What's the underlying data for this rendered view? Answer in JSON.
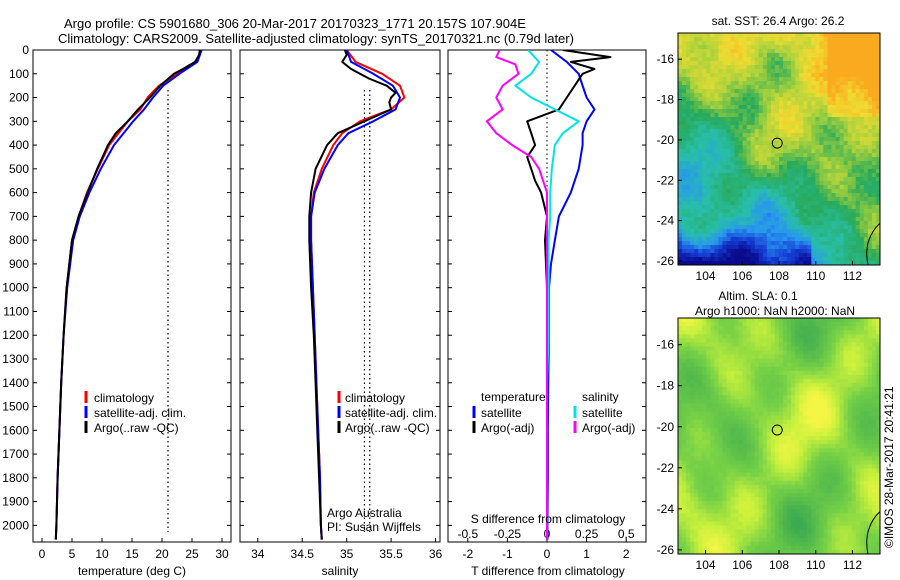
{
  "header": {
    "line1": "Argo profile: CS 5901680_306 20-Mar-2017 20170323_1771 20.157S 107.904E",
    "line2": "Climatology: CARS2009. Satellite-adjusted climatology: synTS_20170321.nc (0.79d later)"
  },
  "watermark": "©IMOS 28-Mar-2017 20:41:21",
  "colors": {
    "climatology": "#ff0000",
    "satellite": "#0000ff",
    "argo": "#000000",
    "salinity_satellite": "#00e5e5",
    "salinity_argo": "#ff00ff"
  },
  "chart_data": [
    {
      "type": "line",
      "id": "temperature",
      "xlabel": "temperature (deg C)",
      "ylabel": "",
      "xlim": [
        -1.5,
        31.5
      ],
      "ylim": [
        2070,
        0
      ],
      "xticks": [
        "0",
        "5",
        "10",
        "15",
        "20",
        "25",
        "30"
      ],
      "yticks": [
        "0",
        "100",
        "200",
        "300",
        "400",
        "500",
        "600",
        "700",
        "800",
        "900",
        "1000",
        "1100",
        "1200",
        "1300",
        "1400",
        "1500",
        "1600",
        "1700",
        "1800",
        "1900",
        "2000"
      ],
      "reference_x": 21,
      "legend": [
        "climatology",
        "satellite-adj. clim.",
        "Argo(..raw -QC)"
      ],
      "series": [
        {
          "name": "climatology",
          "y": [
            0,
            50,
            100,
            150,
            200,
            250,
            300,
            400,
            500,
            600,
            700,
            800,
            1000,
            1200,
            1400,
            1600,
            1800,
            2000,
            2060
          ],
          "x": [
            26.5,
            25.7,
            22.5,
            19.5,
            17.6,
            16.4,
            14.3,
            11.2,
            9.3,
            7.5,
            6.1,
            5.0,
            4.1,
            3.6,
            3.2,
            2.9,
            2.6,
            2.4,
            2.3
          ]
        },
        {
          "name": "satellite-adj. clim.",
          "y": [
            0,
            50,
            100,
            150,
            200,
            250,
            300,
            400,
            500,
            600,
            700,
            800,
            1000,
            1200,
            1400,
            1600,
            1800,
            2000,
            2060
          ],
          "x": [
            26.6,
            25.9,
            22.9,
            20.2,
            18.5,
            17.0,
            15.2,
            12.0,
            9.8,
            7.9,
            6.3,
            5.2,
            4.2,
            3.6,
            3.2,
            2.9,
            2.6,
            2.4,
            2.3
          ]
        },
        {
          "name": "Argo(..raw -QC)",
          "y": [
            0,
            20,
            50,
            80,
            100,
            150,
            200,
            250,
            300,
            350,
            400,
            500,
            600,
            700,
            800,
            1000,
            1200,
            1400,
            1600,
            1800,
            2000,
            2060
          ],
          "x": [
            26.3,
            26.2,
            25.5,
            23.5,
            22.0,
            19.7,
            18.0,
            16.0,
            14.3,
            12.3,
            11.0,
            9.2,
            7.6,
            6.1,
            5.0,
            4.1,
            3.6,
            3.2,
            2.9,
            2.6,
            2.4,
            2.3
          ]
        }
      ]
    },
    {
      "type": "line",
      "id": "salinity",
      "xlabel": "salinity",
      "ylabel": "",
      "xlim": [
        33.8,
        36.05
      ],
      "ylim": [
        2070,
        0
      ],
      "xticks": [
        "34",
        "34.5",
        "35",
        "35.5",
        "36"
      ],
      "reference_x": [
        35.2,
        35.26
      ],
      "legend": [
        "climatology",
        "satellite-adj. clim.",
        "Argo(..raw -QC)"
      ],
      "annotations": [
        "Argo Australia",
        "PI: Susan Wijffels"
      ],
      "series": [
        {
          "name": "climatology",
          "y": [
            0,
            50,
            100,
            150,
            200,
            250,
            300,
            350,
            400,
            500,
            600,
            700,
            800,
            1000,
            1200,
            1400,
            1600,
            1800,
            2000,
            2060
          ],
          "x": [
            35.0,
            35.1,
            35.4,
            35.6,
            35.65,
            35.5,
            35.15,
            34.95,
            34.85,
            34.72,
            34.63,
            34.6,
            34.6,
            34.62,
            34.64,
            34.66,
            34.68,
            34.7,
            34.71,
            34.72
          ]
        },
        {
          "name": "satellite-adj. clim.",
          "y": [
            0,
            50,
            100,
            150,
            200,
            250,
            300,
            350,
            400,
            500,
            600,
            700,
            800,
            1000,
            1200,
            1400,
            1600,
            1800,
            2000,
            2060
          ],
          "x": [
            35.0,
            35.05,
            35.3,
            35.52,
            35.6,
            35.55,
            35.3,
            35.02,
            34.9,
            34.75,
            34.64,
            34.6,
            34.6,
            34.62,
            34.64,
            34.66,
            34.68,
            34.7,
            34.71,
            34.72
          ]
        },
        {
          "name": "Argo(..raw -QC)",
          "y": [
            0,
            20,
            50,
            80,
            100,
            120,
            150,
            180,
            200,
            220,
            250,
            300,
            350,
            400,
            500,
            600,
            700,
            800,
            1000,
            1200,
            1400,
            1600,
            1800,
            2000,
            2060
          ],
          "x": [
            34.98,
            35.0,
            34.95,
            35.05,
            35.15,
            35.25,
            35.45,
            35.55,
            35.5,
            35.48,
            35.5,
            35.2,
            34.9,
            34.78,
            34.65,
            34.6,
            34.58,
            34.58,
            34.6,
            34.63,
            34.65,
            34.67,
            34.69,
            34.71,
            34.72
          ]
        }
      ]
    },
    {
      "type": "line",
      "id": "difference",
      "xlabel": "T difference from climatology",
      "xlabel_top": "S difference from climatology",
      "xlim": [
        -2.5,
        2.5
      ],
      "ylim": [
        2070,
        0
      ],
      "xticks": [
        "-2",
        "-1",
        "0",
        "1",
        "2"
      ],
      "xticks_top": [
        "-0.5",
        "-0.25",
        "0",
        "0.25",
        "0.5"
      ],
      "legend_temperature_title": "temperature",
      "legend_salinity_title": "salinity",
      "legend_temperature": [
        "satellite",
        "Argo(-adj)"
      ],
      "legend_salinity": [
        "satellite",
        "Argo(-adj)"
      ],
      "series": [
        {
          "name": "T satellite",
          "y": [
            0,
            50,
            100,
            150,
            200,
            250,
            300,
            350,
            400,
            500,
            600,
            700,
            800,
            900,
            1000,
            1200,
            1400,
            1600,
            1800,
            2000,
            2060
          ],
          "x": [
            0.1,
            0.5,
            0.8,
            0.9,
            1.0,
            1.2,
            1.0,
            0.9,
            0.9,
            0.8,
            0.6,
            0.3,
            0.2,
            0.1,
            0.05,
            0.05,
            0.03,
            0.02,
            0.02,
            0.01,
            0.01
          ]
        },
        {
          "name": "T Argo(-adj)",
          "y": [
            0,
            30,
            50,
            60,
            80,
            100,
            150,
            200,
            250,
            300,
            350,
            400,
            450,
            500,
            550,
            600,
            700,
            800,
            1000,
            1200,
            1400,
            1600,
            1800,
            2000,
            2060
          ],
          "x": [
            0.4,
            1.6,
            0.6,
            0.8,
            1.2,
            0.9,
            0.7,
            0.5,
            0.3,
            -0.5,
            -0.4,
            -0.3,
            -0.5,
            -0.4,
            -0.3,
            -0.15,
            0.0,
            -0.05,
            0.0,
            0.0,
            0.0,
            0.0,
            0.0,
            0.0,
            0.0
          ]
        },
        {
          "name": "S satellite",
          "y": [
            0,
            50,
            100,
            150,
            200,
            250,
            300,
            350,
            400,
            500,
            600,
            700,
            800,
            1000,
            1200,
            1400,
            1600,
            1800,
            2000,
            2060
          ],
          "x": [
            -0.12,
            -0.05,
            -0.1,
            -0.2,
            -0.1,
            0.05,
            0.2,
            0.1,
            0.05,
            0.03,
            0.02,
            0.02,
            0.01,
            0.01,
            0.01,
            0.0,
            0.0,
            0.0,
            0.0,
            0.0
          ]
        },
        {
          "name": "S Argo(-adj)",
          "y": [
            0,
            30,
            60,
            100,
            150,
            200,
            250,
            300,
            350,
            400,
            450,
            500,
            600,
            700,
            800,
            1000,
            1200,
            1400,
            1600,
            1800,
            2000,
            2060
          ],
          "x": [
            -0.3,
            -0.32,
            -0.2,
            -0.18,
            -0.28,
            -0.32,
            -0.28,
            -0.38,
            -0.32,
            -0.22,
            -0.1,
            -0.05,
            0.0,
            0.0,
            0.0,
            0.0,
            0.0,
            0.0,
            0.0,
            0.0,
            0.0,
            0.0
          ]
        }
      ]
    },
    {
      "type": "heatmap",
      "id": "sst_map",
      "title": "sat. SST: 26.4 Argo: 26.2",
      "xticks": [
        "104",
        "106",
        "108",
        "110",
        "112"
      ],
      "yticks": [
        "-16",
        "-18",
        "-20",
        "-22",
        "-24",
        "-26"
      ],
      "xlim": [
        102.5,
        113.5
      ],
      "ylim": [
        -26.2,
        -14.7
      ],
      "marker": {
        "lon": 107.904,
        "lat": -20.157
      }
    },
    {
      "type": "heatmap",
      "id": "sla_map",
      "title": "Altim. SLA: 0.1",
      "subtitle": "Argo h1000: NaN h2000: NaN",
      "xticks": [
        "104",
        "106",
        "108",
        "110",
        "112"
      ],
      "yticks": [
        "-16",
        "-18",
        "-20",
        "-22",
        "-24",
        "-26"
      ],
      "xlim": [
        102.5,
        113.5
      ],
      "ylim": [
        -26.2,
        -14.7
      ],
      "marker": {
        "lon": 107.904,
        "lat": -20.157
      }
    }
  ]
}
